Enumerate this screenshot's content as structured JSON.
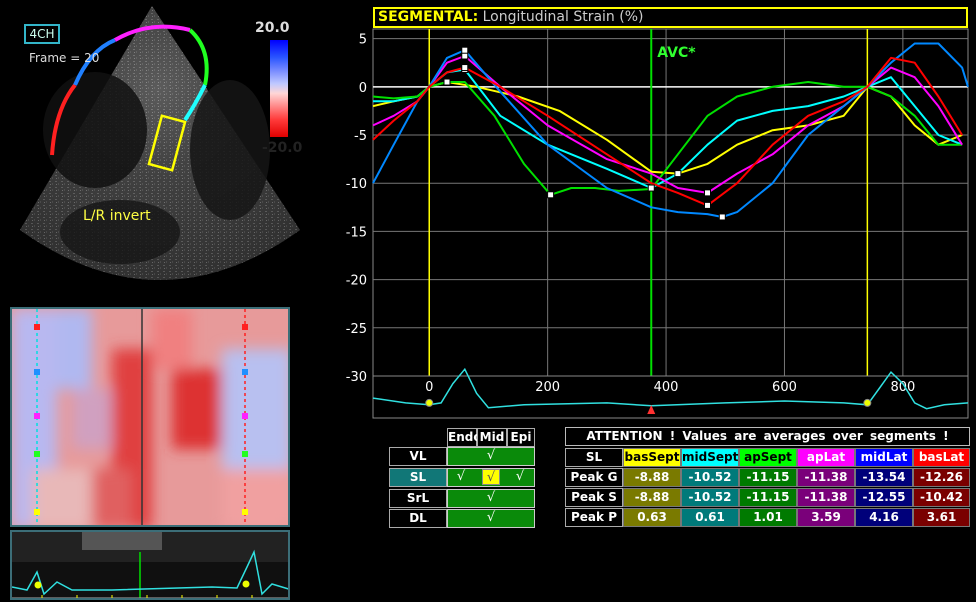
{
  "echo": {
    "view_label": "4CH",
    "frame_label": "Frame = 20",
    "lr_label": "L/R invert",
    "scale_max": "20.0",
    "scale_min": "-20.0"
  },
  "chart_title_bold": "SEGMENTAL:",
  "chart_title_rest": " Longitudinal Strain (%)",
  "chart_data": {
    "type": "line",
    "title": "SEGMENTAL: Longitudinal Strain (%)",
    "xlabel": "",
    "ylabel": "",
    "xlim": [
      -95,
      910
    ],
    "ylim": [
      -30,
      6
    ],
    "x_ticks": [
      0,
      200,
      400,
      600,
      800
    ],
    "y_ticks": [
      5,
      0,
      -5,
      -10,
      -15,
      -20,
      -25,
      -30
    ],
    "markers": {
      "avc_label": "AVC*",
      "avc_x": 375,
      "yellow_lines_x": [
        0,
        740
      ]
    },
    "series": [
      {
        "color": "#ffff00",
        "x": [
          -95,
          -60,
          -20,
          0,
          30,
          80,
          150,
          220,
          300,
          375,
          420,
          470,
          520,
          580,
          640,
          700,
          740,
          780,
          820,
          860,
          900
        ],
        "y": [
          -2,
          -1.5,
          -1,
          0,
          0.5,
          0,
          -1,
          -2.5,
          -5.5,
          -8.8,
          -9,
          -8,
          -6,
          -4.5,
          -4,
          -3,
          0,
          -1,
          -4,
          -6,
          -5
        ]
      },
      {
        "color": "#00ffff",
        "x": [
          -95,
          -60,
          -20,
          0,
          30,
          60,
          120,
          200,
          300,
          375,
          420,
          470,
          520,
          580,
          640,
          700,
          740,
          780,
          820,
          860,
          900
        ],
        "y": [
          -1.5,
          -1.5,
          -1,
          0,
          1.5,
          1.8,
          -3,
          -6,
          -8.5,
          -10.5,
          -9,
          -6,
          -3.5,
          -2.5,
          -2,
          -1,
          0,
          1,
          -2,
          -5,
          -6
        ]
      },
      {
        "color": "#00e000",
        "x": [
          -95,
          -60,
          -20,
          0,
          30,
          60,
          110,
          160,
          205,
          240,
          280,
          320,
          375,
          420,
          470,
          520,
          580,
          640,
          700,
          740,
          780,
          820,
          860,
          900
        ],
        "y": [
          -1,
          -1.2,
          -1,
          0,
          0.5,
          0.5,
          -3,
          -8,
          -11.2,
          -10.5,
          -10.5,
          -10.8,
          -10.6,
          -7,
          -3,
          -1,
          0,
          0.5,
          0,
          0,
          -1,
          -3,
          -6,
          -6
        ]
      },
      {
        "color": "#ff00ff",
        "x": [
          -95,
          -60,
          -20,
          0,
          30,
          60,
          120,
          200,
          300,
          375,
          420,
          470,
          520,
          580,
          640,
          700,
          740,
          780,
          820,
          860,
          900
        ],
        "y": [
          -4,
          -3,
          -1.5,
          0,
          2.5,
          3.2,
          0,
          -4,
          -7.5,
          -9,
          -10.5,
          -11,
          -9,
          -7,
          -4,
          -2,
          0,
          2,
          1,
          -2,
          -6
        ]
      },
      {
        "color": "#0088ff",
        "x": [
          -95,
          -60,
          -20,
          0,
          30,
          60,
          120,
          200,
          300,
          375,
          420,
          470,
          495,
          520,
          580,
          640,
          700,
          740,
          780,
          820,
          860,
          900,
          910
        ],
        "y": [
          -10,
          -6,
          -1.5,
          0,
          3,
          3.8,
          -0.5,
          -6,
          -10.5,
          -12.5,
          -13,
          -13.2,
          -13.5,
          -13,
          -10,
          -5,
          -2,
          0,
          2.5,
          4.5,
          4.5,
          2,
          0
        ]
      },
      {
        "color": "#ff0000",
        "x": [
          -95,
          -60,
          -20,
          0,
          30,
          60,
          120,
          200,
          300,
          375,
          420,
          470,
          520,
          580,
          640,
          700,
          740,
          780,
          820,
          860,
          900
        ],
        "y": [
          -5.5,
          -3.5,
          -1.5,
          0,
          1.5,
          2,
          0,
          -3,
          -7,
          -10,
          -11,
          -12.3,
          -10,
          -6,
          -3,
          -1.5,
          0,
          3,
          2.5,
          -1,
          -5
        ]
      }
    ],
    "ecg_x": [
      -95,
      -40,
      0,
      20,
      40,
      60,
      80,
      100,
      160,
      300,
      375,
      500,
      600,
      700,
      740,
      760,
      780,
      800,
      820,
      840,
      870,
      910
    ],
    "ecg_y": [
      -32.5,
      -33,
      -33.2,
      -33,
      -31,
      -29.5,
      -32,
      -33.5,
      -33.2,
      -33,
      -33.3,
      -33,
      -32.8,
      -33,
      -33.2,
      -31.5,
      -29.8,
      -31,
      -33,
      -33.6,
      -33.2,
      -33
    ]
  },
  "select_table": {
    "headers": [
      "Endo",
      "Mid",
      "Epi"
    ],
    "rows": [
      "VL",
      "SL",
      "SrL",
      "DL"
    ],
    "active_row": "SL",
    "check_glyph": "√"
  },
  "results": {
    "attention": "ATTENTION !  Values are averages over segments !",
    "header_label": "SL",
    "segments": [
      {
        "name": "basSept",
        "color": "#ffff00",
        "dark": "#7a7a00",
        "g": "-8.88",
        "s": "-8.88",
        "p": "0.63"
      },
      {
        "name": "midSept",
        "color": "#00ffff",
        "dark": "#007a7a",
        "g": "-10.52",
        "s": "-10.52",
        "p": "0.61"
      },
      {
        "name": "apSept",
        "color": "#00ff00",
        "dark": "#007a00",
        "g": "-11.15",
        "s": "-11.15",
        "p": "1.01"
      },
      {
        "name": "apLat",
        "color": "#ff00ff",
        "dark": "#7a007a",
        "g": "-11.38",
        "s": "-11.38",
        "p": "3.59"
      },
      {
        "name": "midLat",
        "color": "#0000ff",
        "dark": "#00007a",
        "g": "-13.54",
        "s": "-12.55",
        "p": "4.16"
      },
      {
        "name": "basLat",
        "color": "#ff0000",
        "dark": "#7a0000",
        "g": "-12.26",
        "s": "-10.42",
        "p": "3.61"
      }
    ],
    "row_labels": [
      "Peak G",
      "Peak S",
      "Peak P"
    ]
  }
}
